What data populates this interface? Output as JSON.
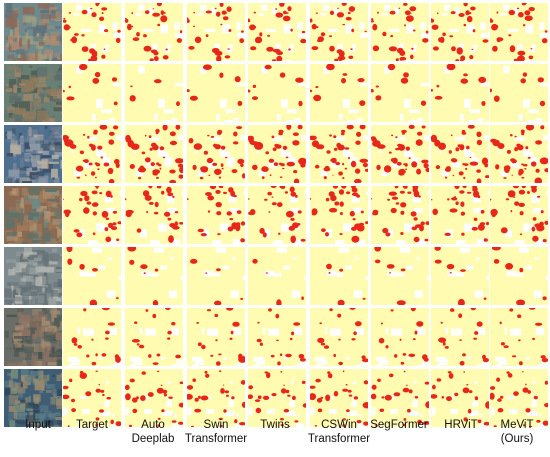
{
  "figure": {
    "columns": [
      {
        "key": "input",
        "label": "Input",
        "kind": "image"
      },
      {
        "key": "target",
        "label": "Target",
        "kind": "mask"
      },
      {
        "key": "autodeeplab",
        "label": "Auto\nDeeplab",
        "kind": "mask"
      },
      {
        "key": "swin",
        "label": "Swin\nTransformer",
        "kind": "mask"
      },
      {
        "key": "twins",
        "label": "Twins",
        "kind": "mask"
      },
      {
        "key": "cswin",
        "label": "CSWin\nTransformer",
        "kind": "mask"
      },
      {
        "key": "segformer",
        "label": "SegFormer",
        "kind": "mask"
      },
      {
        "key": "hrvit",
        "label": "HRViT",
        "kind": "mask"
      },
      {
        "key": "mevit",
        "label": "MeViT\n(Ours)",
        "kind": "mask"
      }
    ],
    "rows": 7,
    "colors": {
      "background": "#ffffff",
      "mask_yellow": "#fffbb0",
      "mask_red": "#e8271b",
      "mask_white": "#ffffff"
    }
  }
}
